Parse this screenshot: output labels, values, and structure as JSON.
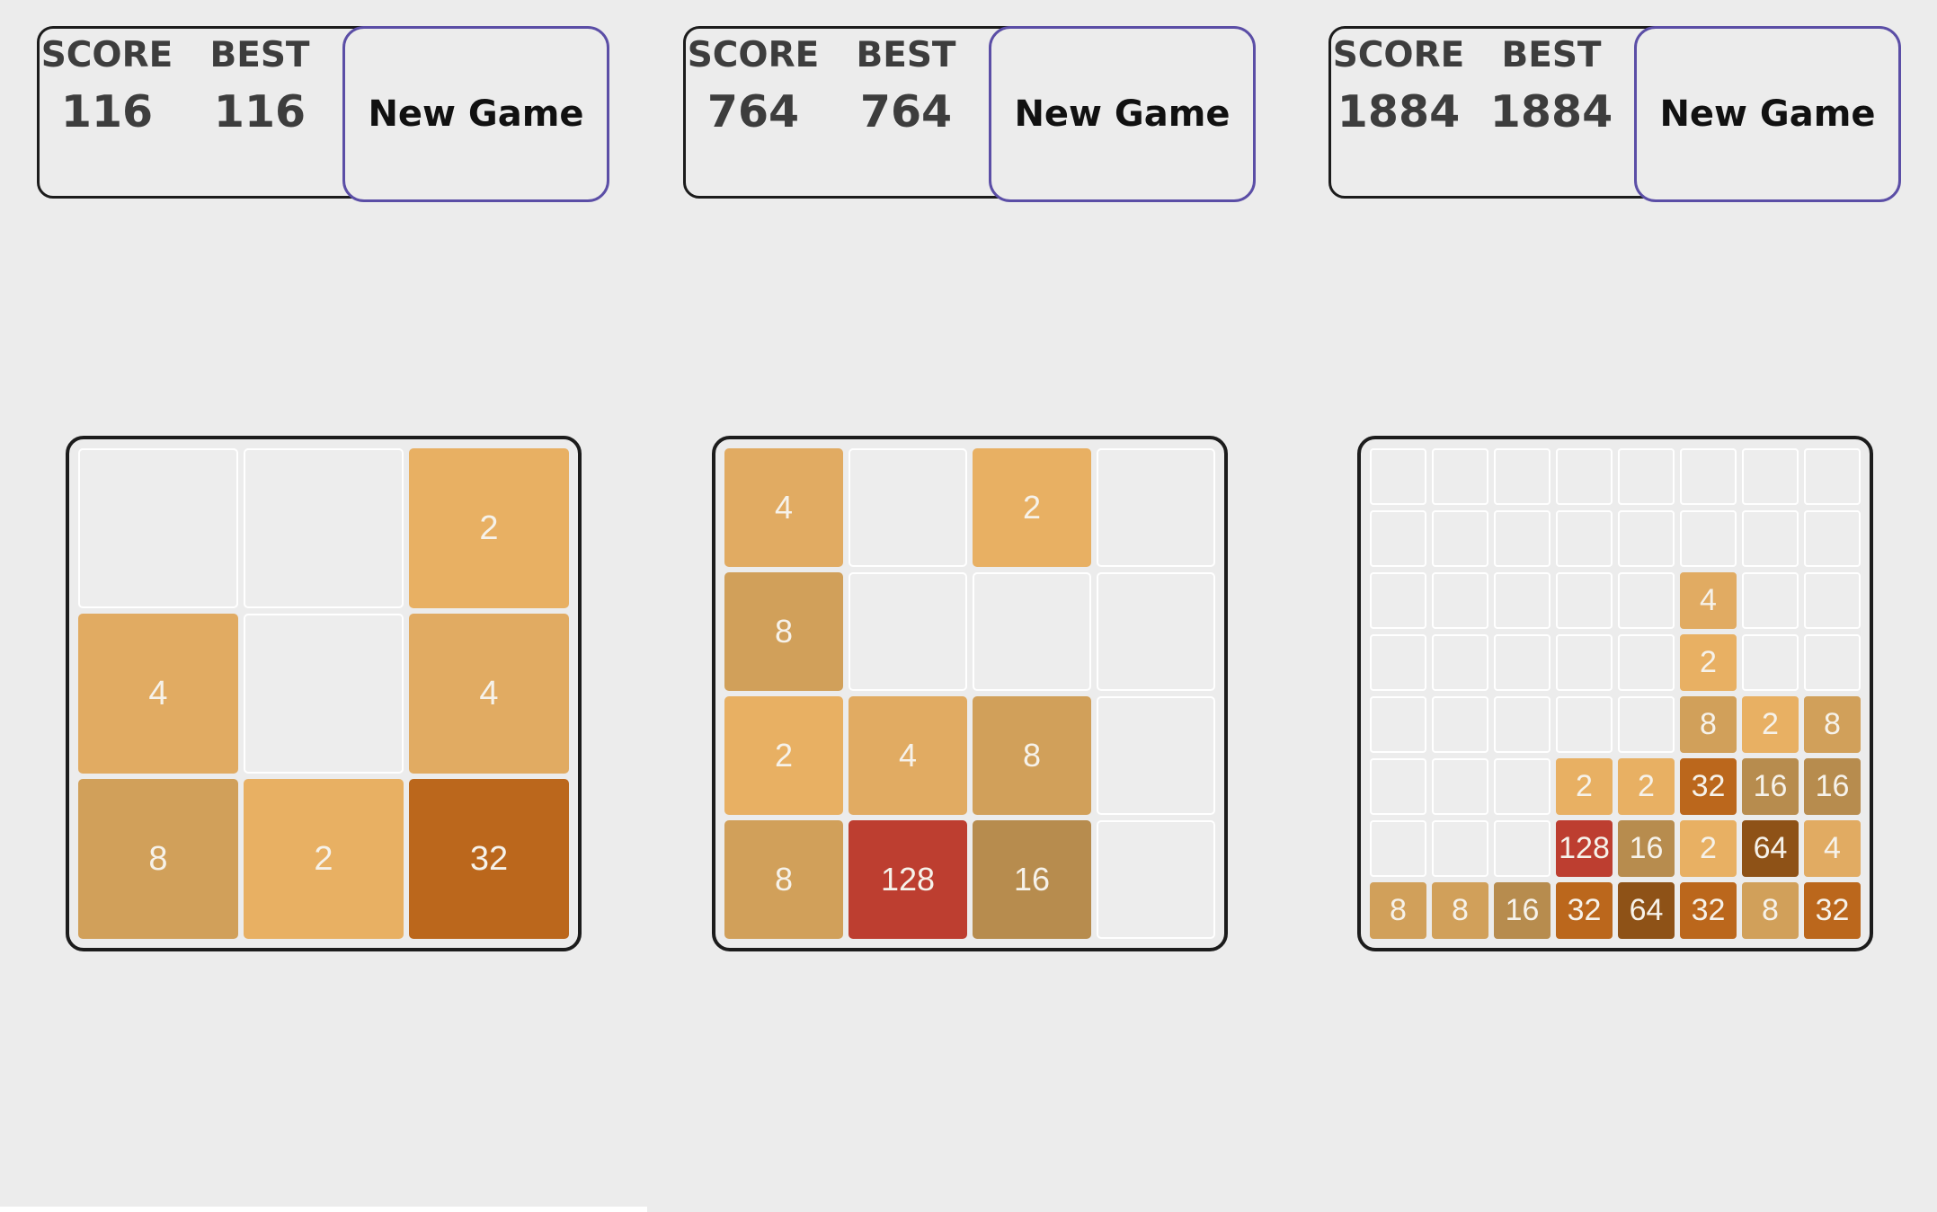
{
  "labels": {
    "score": "SCORE",
    "best": "BEST",
    "new_game": "New Game"
  },
  "tile_colors": {
    "2": "#e8b063",
    "4": "#e1ab62",
    "8": "#d1a05a",
    "16": "#b78c4e",
    "32": "#bb671c",
    "64": "#8e5217",
    "128": "#bd3e30"
  },
  "empty_color": "#ededed",
  "games": [
    {
      "score": "116",
      "best": "116",
      "size": 3,
      "tiles": [
        [
          "",
          "",
          "2"
        ],
        [
          "4",
          "",
          "4"
        ],
        [
          "8",
          "2",
          "32"
        ]
      ]
    },
    {
      "score": "764",
      "best": "764",
      "size": 4,
      "tiles": [
        [
          "4",
          "",
          "2",
          ""
        ],
        [
          "8",
          "",
          "",
          ""
        ],
        [
          "2",
          "4",
          "8",
          ""
        ],
        [
          "8",
          "128",
          "16",
          ""
        ]
      ]
    },
    {
      "score": "1884",
      "best": "1884",
      "size": 8,
      "tiles": [
        [
          "",
          "",
          "",
          "",
          "",
          "",
          "",
          ""
        ],
        [
          "",
          "",
          "",
          "",
          "",
          "",
          "",
          ""
        ],
        [
          "",
          "",
          "",
          "",
          "",
          "4",
          "",
          ""
        ],
        [
          "",
          "",
          "",
          "",
          "",
          "2",
          "",
          ""
        ],
        [
          "",
          "",
          "",
          "",
          "",
          "8",
          "2",
          "8"
        ],
        [
          "",
          "",
          "",
          "2",
          "2",
          "32",
          "16",
          "16"
        ],
        [
          "",
          "",
          "",
          "128",
          "16",
          "2",
          "64",
          "4"
        ],
        [
          "8",
          "8",
          "16",
          "32",
          "64",
          "32",
          "8",
          "32"
        ]
      ]
    }
  ]
}
